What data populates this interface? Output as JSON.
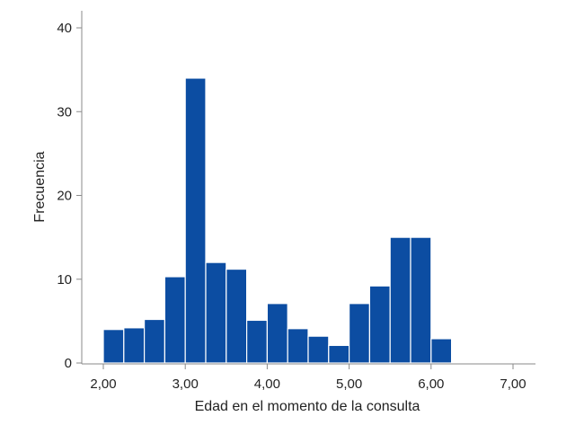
{
  "chart_data": {
    "type": "bar",
    "title": "",
    "xlabel": "Edad en el momento de la consulta",
    "ylabel": "Frecuencia",
    "xlim": [
      1.8,
      7.3
    ],
    "ylim": [
      0,
      42
    ],
    "xticks": [
      2.0,
      3.0,
      4.0,
      5.0,
      6.0,
      7.0
    ],
    "xtick_labels": [
      "2,00",
      "3,00",
      "4,00",
      "5,00",
      "6,00",
      "7,00"
    ],
    "yticks": [
      0,
      10,
      20,
      30,
      40
    ],
    "ytick_labels": [
      "0",
      "10",
      "20",
      "30",
      "40"
    ],
    "bar_color": "#0c4da2",
    "grid": false,
    "bins": [
      {
        "start": 2.0,
        "end": 2.25,
        "value": 4
      },
      {
        "start": 2.25,
        "end": 2.5,
        "value": 4.2
      },
      {
        "start": 2.5,
        "end": 2.75,
        "value": 5.2
      },
      {
        "start": 2.75,
        "end": 3.0,
        "value": 10.3
      },
      {
        "start": 3.0,
        "end": 3.25,
        "value": 34
      },
      {
        "start": 3.25,
        "end": 3.5,
        "value": 12
      },
      {
        "start": 3.5,
        "end": 3.75,
        "value": 11.2
      },
      {
        "start": 3.75,
        "end": 4.0,
        "value": 5.1
      },
      {
        "start": 4.0,
        "end": 4.25,
        "value": 7.1
      },
      {
        "start": 4.25,
        "end": 4.5,
        "value": 4.1
      },
      {
        "start": 4.5,
        "end": 4.75,
        "value": 3.2
      },
      {
        "start": 4.75,
        "end": 5.0,
        "value": 2.1
      },
      {
        "start": 5.0,
        "end": 5.25,
        "value": 7.1
      },
      {
        "start": 5.25,
        "end": 5.5,
        "value": 9.2
      },
      {
        "start": 5.5,
        "end": 5.75,
        "value": 15
      },
      {
        "start": 5.75,
        "end": 6.0,
        "value": 15
      },
      {
        "start": 6.0,
        "end": 6.25,
        "value": 2.9
      }
    ]
  }
}
